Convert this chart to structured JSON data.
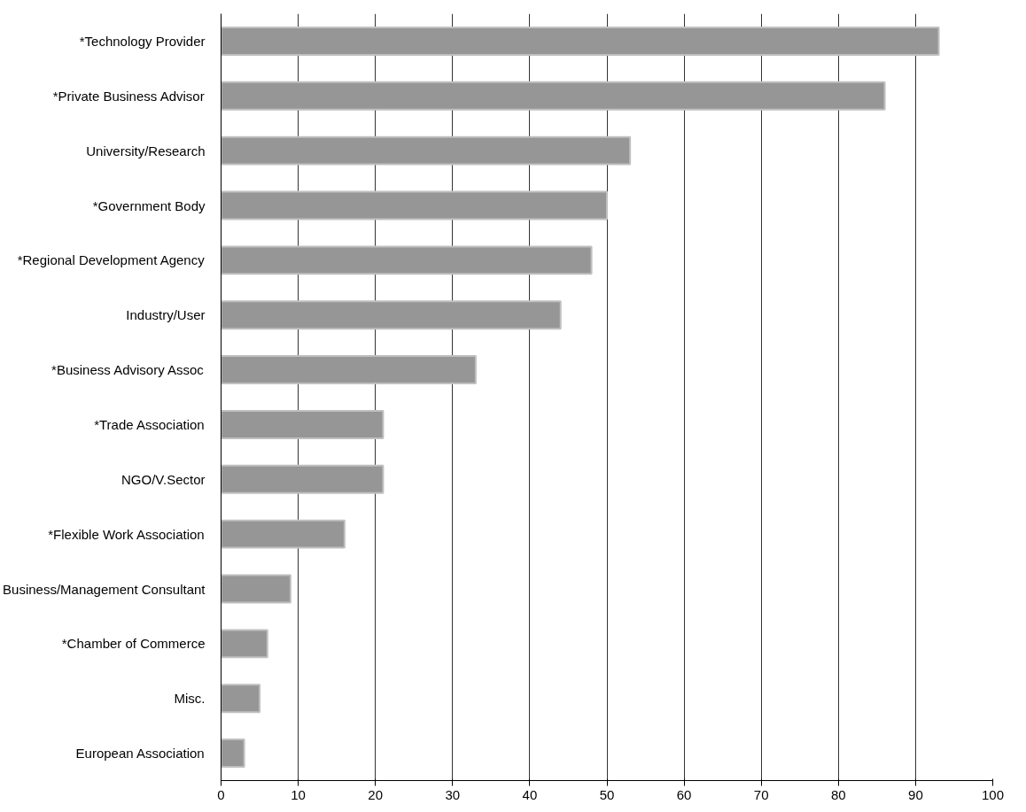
{
  "chart_data": {
    "type": "bar",
    "orientation": "horizontal",
    "categories": [
      "*Technology Provider",
      "*Private Business Advisor",
      "University/Research",
      "*Government Body",
      "*Regional Development Agency",
      "Industry/User",
      "*Business Advisory Assoc",
      "*Trade Association",
      "NGO/V.Sector",
      "*Flexible Work Association",
      "Business/Management Consultant",
      "*Chamber of Commerce",
      "Misc.",
      "European Association"
    ],
    "values": [
      93,
      86,
      53,
      50,
      48,
      44,
      33,
      21,
      21,
      16,
      9,
      6,
      5,
      3
    ],
    "color": "#969696",
    "xlim": [
      0,
      100
    ],
    "xticks": [
      0,
      10,
      20,
      30,
      40,
      50,
      60,
      70,
      80,
      90,
      100
    ],
    "grid": "x"
  }
}
